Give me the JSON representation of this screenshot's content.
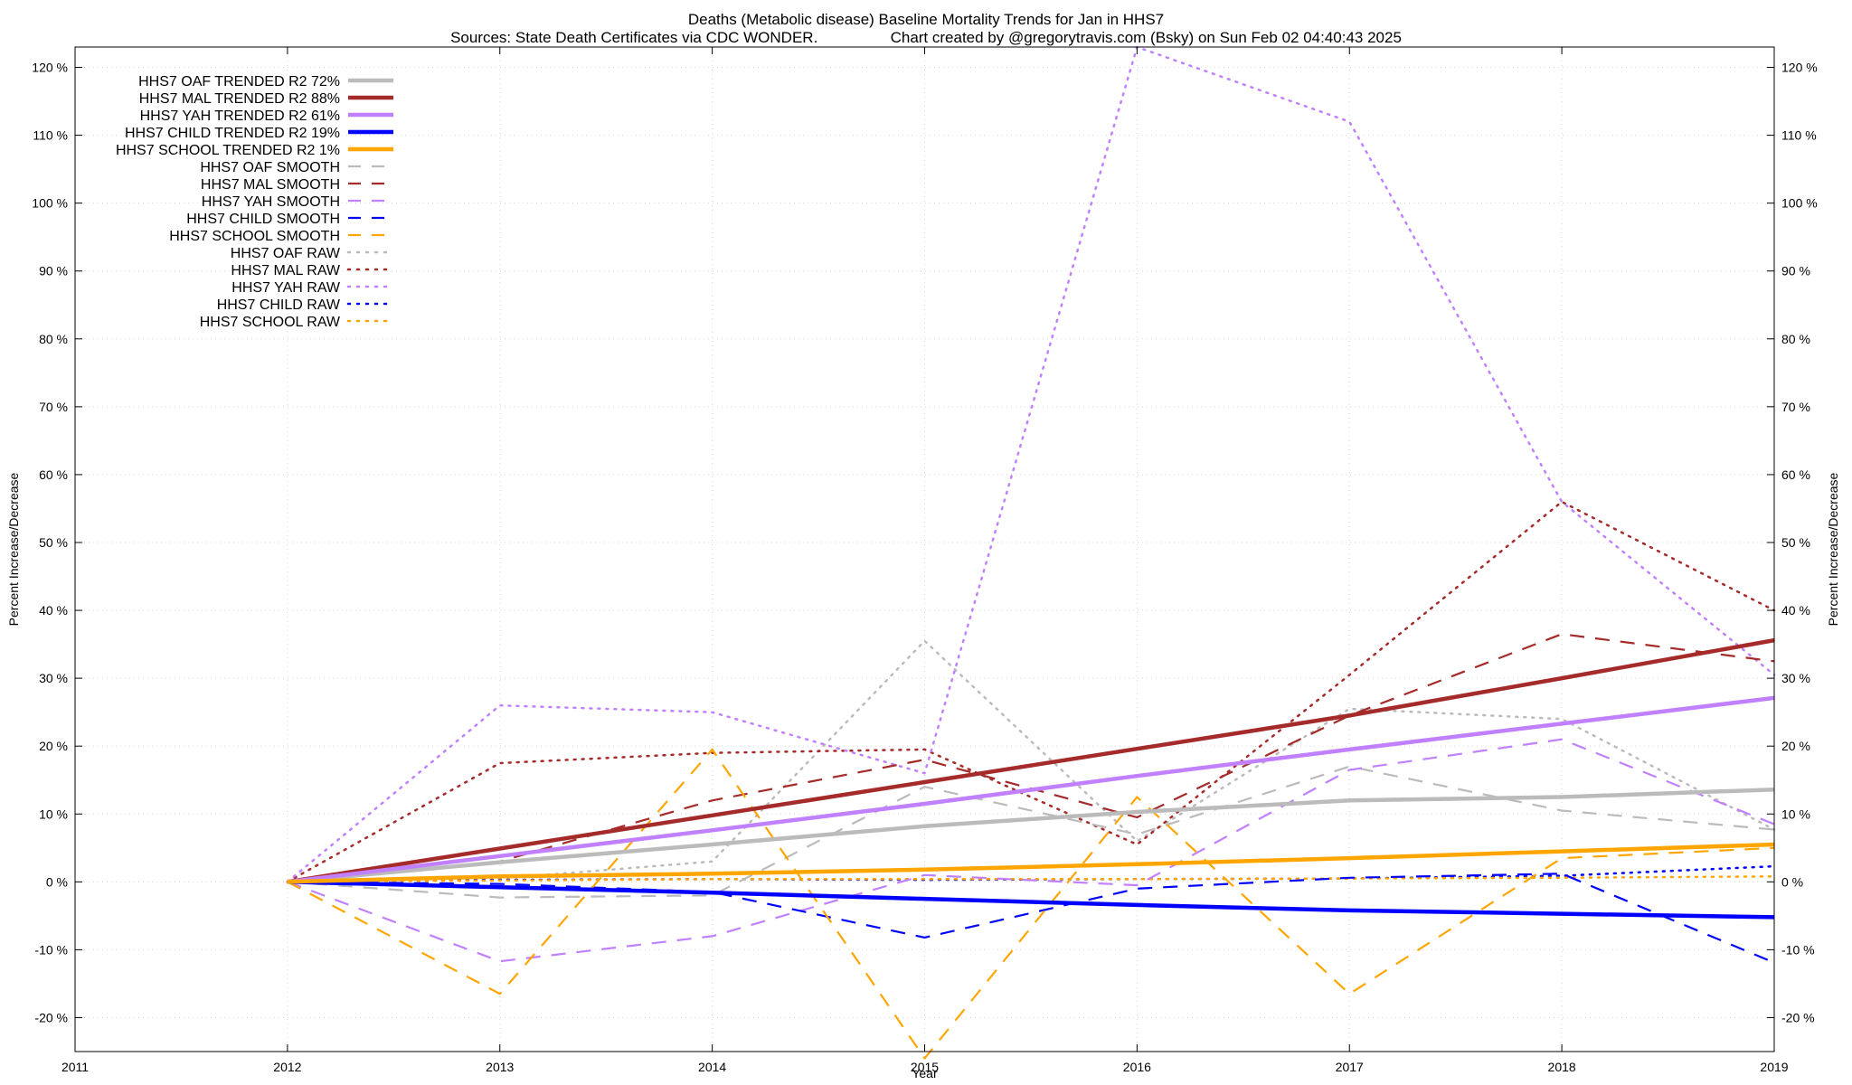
{
  "header": {
    "title": "Deaths (Metabolic disease)  Baseline Mortality Trends for Jan in HHS7",
    "subtitle": "Sources: State Death Certificates via CDC WONDER.                 Chart created by @gregorytravis.com (Bsky) on Sun Feb 02 04:40:43 2025"
  },
  "chart_data": {
    "type": "line",
    "title": "Deaths (Metabolic disease)  Baseline Mortality Trends for Jan in HHS7",
    "xlabel": "Year",
    "ylabel": "Percent Increase/Decrease",
    "ylabel_right": "Percent Increase/Decrease",
    "xlim": [
      2011,
      2019
    ],
    "ylim": [
      -25,
      123
    ],
    "x_ticks": [
      "2011",
      "2012",
      "2013",
      "2014",
      "2015",
      "2016",
      "2017",
      "2018",
      "2019"
    ],
    "y_ticks": [
      {
        "v": -20,
        "label": "-20 %"
      },
      {
        "v": -10,
        "label": "-10 %"
      },
      {
        "v": 0,
        "label": "0 %"
      },
      {
        "v": 10,
        "label": "10 %"
      },
      {
        "v": 20,
        "label": "20 %"
      },
      {
        "v": 30,
        "label": "30 %"
      },
      {
        "v": 40,
        "label": "40 %"
      },
      {
        "v": 50,
        "label": "50 %"
      },
      {
        "v": 60,
        "label": "60 %"
      },
      {
        "v": 70,
        "label": "70 %"
      },
      {
        "v": 80,
        "label": "80 %"
      },
      {
        "v": 90,
        "label": "90 %"
      },
      {
        "v": 100,
        "label": "100 %"
      },
      {
        "v": 110,
        "label": "110 %"
      },
      {
        "v": 120,
        "label": "120 %"
      }
    ],
    "grid": true,
    "legend_position": "top-left",
    "x": [
      2012,
      2013,
      2014,
      2015,
      2016,
      2017,
      2018,
      2019
    ],
    "series": [
      {
        "name": "HHS7 OAF TRENDED R2  72%",
        "color": "#bbbbbb",
        "style": "solid",
        "values": [
          0,
          2.9,
          5.5,
          8.2,
          10.3,
          12.0,
          12.5,
          13.6
        ]
      },
      {
        "name": "HHS7 MAL TRENDED R2  88%",
        "color": "#a52a2a",
        "style": "solid",
        "values": [
          0,
          4.9,
          9.8,
          14.7,
          19.6,
          24.5,
          30.0,
          35.6
        ]
      },
      {
        "name": "HHS7 YAH TRENDED R2  61%",
        "color": "#c080ff",
        "style": "solid",
        "values": [
          0,
          3.8,
          7.6,
          11.5,
          15.6,
          19.5,
          23.3,
          27.1
        ]
      },
      {
        "name": "HHS7 CHILD TRENDED R2  19%",
        "color": "#0000ff",
        "style": "solid",
        "values": [
          0,
          -0.8,
          -1.6,
          -2.5,
          -3.4,
          -4.2,
          -4.7,
          -5.2
        ]
      },
      {
        "name": "HHS7 SCHOOL TRENDED R2   1%",
        "color": "#ffa500",
        "style": "solid",
        "values": [
          0,
          0.8,
          1.2,
          1.8,
          2.6,
          3.5,
          4.5,
          5.5
        ]
      },
      {
        "name": "HHS7 OAF SMOOTH",
        "color": "#bbbbbb",
        "style": "dash",
        "values": [
          0,
          -2.3,
          -2.0,
          14.0,
          7.0,
          17.0,
          10.5,
          7.7
        ]
      },
      {
        "name": "HHS7 MAL SMOOTH",
        "color": "#a52a2a",
        "style": "dash",
        "values": [
          0,
          3.0,
          12.0,
          18.0,
          9.5,
          24.5,
          36.5,
          32.5
        ]
      },
      {
        "name": "HHS7 YAH SMOOTH",
        "color": "#c080ff",
        "style": "dash",
        "values": [
          0,
          -11.7,
          -8.0,
          1.0,
          -0.5,
          16.5,
          21.0,
          8.5
        ]
      },
      {
        "name": "HHS7 CHILD SMOOTH",
        "color": "#0000ff",
        "style": "dash",
        "values": [
          0,
          -0.3,
          -1.5,
          -8.2,
          -1.0,
          0.6,
          1.2,
          -11.9
        ]
      },
      {
        "name": "HHS7 SCHOOL SMOOTH",
        "color": "#ffa500",
        "style": "dash",
        "values": [
          0,
          -16.5,
          19.5,
          -26.0,
          12.5,
          -16.5,
          3.5,
          5.0
        ]
      },
      {
        "name": "HHS7 OAF RAW",
        "color": "#bbbbbb",
        "style": "dot",
        "values": [
          0,
          0.5,
          3.0,
          35.5,
          6.0,
          25.5,
          24.0,
          7.7
        ]
      },
      {
        "name": "HHS7 MAL RAW",
        "color": "#a52a2a",
        "style": "dot",
        "values": [
          0,
          17.5,
          19.0,
          19.5,
          5.5,
          30.5,
          56.0,
          40.0
        ]
      },
      {
        "name": "HHS7 YAH RAW",
        "color": "#c080ff",
        "style": "dot",
        "values": [
          0,
          26.0,
          25.0,
          16.0,
          123.0,
          112.0,
          56.0,
          30.5
        ]
      },
      {
        "name": "HHS7 CHILD RAW",
        "color": "#0000ff",
        "style": "dot",
        "values": [
          0,
          0.3,
          0.4,
          0.3,
          0.4,
          0.5,
          0.9,
          2.3
        ]
      },
      {
        "name": "HHS7 SCHOOL RAW",
        "color": "#ffa500",
        "style": "dot",
        "values": [
          0,
          0.2,
          0.4,
          0.4,
          0.4,
          0.5,
          0.6,
          0.8
        ]
      }
    ]
  }
}
